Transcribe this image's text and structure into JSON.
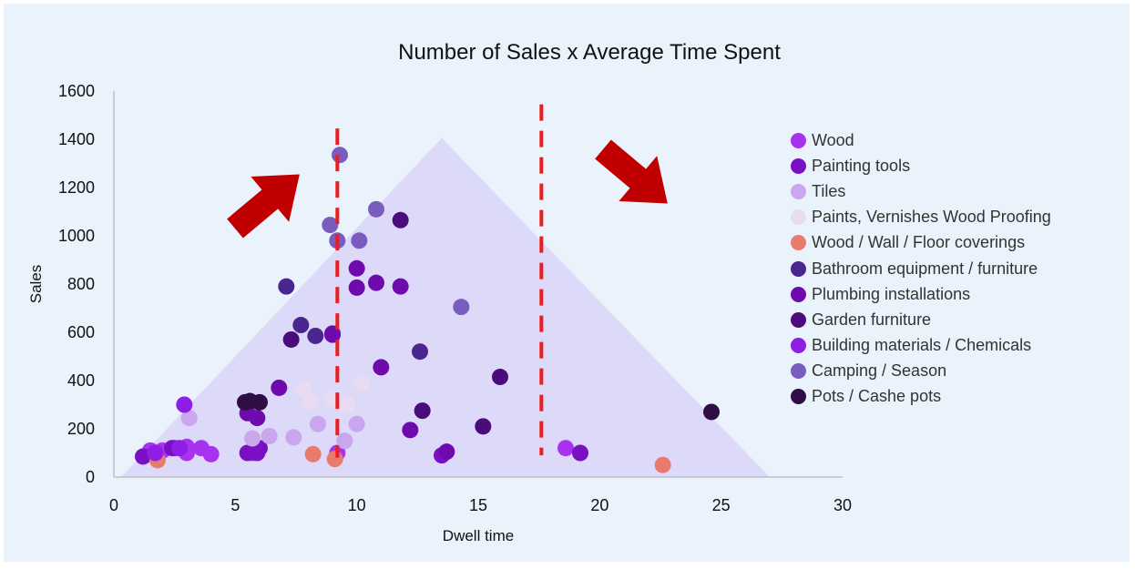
{
  "chart_data": {
    "type": "scatter",
    "title": "Number of Sales x Average Time Spent",
    "xlabel": "Dwell time",
    "ylabel": "Sales",
    "xlim": [
      0,
      30
    ],
    "ylim": [
      0,
      1600
    ],
    "xticks": [
      0,
      5,
      10,
      15,
      20,
      25,
      30
    ],
    "yticks": [
      0,
      200,
      400,
      600,
      800,
      1000,
      1200,
      1400,
      1600
    ],
    "legend_position": "right",
    "grid": false,
    "background_triangle": {
      "color": "#ddd9f8",
      "vertices": [
        [
          0.3,
          0
        ],
        [
          13.5,
          1405
        ],
        [
          27,
          0
        ]
      ]
    },
    "threshold_lines": [
      {
        "x": 9.2,
        "y_range": [
          80,
          1445
        ],
        "color": "#ee1c1c",
        "style": "dashed"
      },
      {
        "x": 17.6,
        "y_range": [
          90,
          1545
        ],
        "color": "#ee1c1c",
        "style": "dashed"
      }
    ],
    "arrows": [
      {
        "direction": "up-right",
        "color": "#c00000"
      },
      {
        "direction": "down-right",
        "color": "#c00000"
      }
    ],
    "series": [
      {
        "name": "Wood",
        "color": "#a833ee",
        "points": [
          [
            1.5,
            110
          ],
          [
            2,
            110
          ],
          [
            2.5,
            120
          ],
          [
            3,
            125
          ],
          [
            3.6,
            120
          ],
          [
            4,
            95
          ],
          [
            3,
            100
          ],
          [
            5.7,
            100
          ],
          [
            9.2,
            100
          ],
          [
            18.6,
            120
          ]
        ]
      },
      {
        "name": "Painting tools",
        "color": "#7a10c4",
        "points": [
          [
            1.2,
            85
          ],
          [
            2.4,
            120
          ],
          [
            6,
            120
          ],
          [
            5.5,
            100
          ],
          [
            5.9,
            100
          ],
          [
            13.5,
            90
          ],
          [
            19.2,
            100
          ]
        ]
      },
      {
        "name": "Tiles",
        "color": "#c9a6ee",
        "points": [
          [
            3.1,
            245
          ],
          [
            5.7,
            160
          ],
          [
            6.4,
            170
          ],
          [
            7.4,
            165
          ],
          [
            8.4,
            220
          ],
          [
            9.5,
            150
          ],
          [
            10,
            220
          ]
        ]
      },
      {
        "name": "Paints, Vernishes Wood Proofing",
        "color": "#e9dcf2",
        "points": [
          [
            7.8,
            365
          ],
          [
            8.1,
            315
          ],
          [
            9,
            325
          ],
          [
            9.6,
            300
          ],
          [
            10.2,
            390
          ]
        ]
      },
      {
        "name": "Wood / Wall / Floor coverings",
        "color": "#e87b6e",
        "points": [
          [
            1.8,
            70
          ],
          [
            8.2,
            95
          ],
          [
            9.1,
            75
          ],
          [
            22.6,
            50
          ]
        ]
      },
      {
        "name": "Bathroom equipment / furniture",
        "color": "#4a2690",
        "points": [
          [
            7.1,
            790
          ],
          [
            7.7,
            630
          ],
          [
            8.3,
            585
          ],
          [
            9,
            595
          ],
          [
            12.6,
            520
          ]
        ]
      },
      {
        "name": "Plumbing installations",
        "color": "#6f0aad",
        "points": [
          [
            5.5,
            265
          ],
          [
            5.9,
            245
          ],
          [
            6.8,
            370
          ],
          [
            9,
            590
          ],
          [
            10,
            865
          ],
          [
            10,
            785
          ],
          [
            10.8,
            805
          ],
          [
            11,
            455
          ],
          [
            11.8,
            790
          ],
          [
            12.2,
            195
          ],
          [
            13.7,
            105
          ]
        ]
      },
      {
        "name": "Garden furniture",
        "color": "#4a0c7a",
        "points": [
          [
            7.3,
            570
          ],
          [
            11.8,
            1065
          ],
          [
            12.7,
            275
          ],
          [
            15.2,
            210
          ],
          [
            15.9,
            415
          ]
        ]
      },
      {
        "name": "Building materials / Chemicals",
        "color": "#8e1de6",
        "points": [
          [
            2.9,
            300
          ],
          [
            1.7,
            100
          ],
          [
            2.7,
            120
          ]
        ]
      },
      {
        "name": "Camping / Season",
        "color": "#7a5cbe",
        "points": [
          [
            8.9,
            1045
          ],
          [
            9.2,
            980
          ],
          [
            9.3,
            1335
          ],
          [
            10.1,
            980
          ],
          [
            10.8,
            1110
          ],
          [
            14.3,
            705
          ]
        ]
      },
      {
        "name": "Pots / Cashe pots",
        "color": "#2e0e45",
        "points": [
          [
            5.4,
            310
          ],
          [
            5.6,
            315
          ],
          [
            6,
            310
          ],
          [
            24.6,
            270
          ]
        ]
      }
    ]
  }
}
